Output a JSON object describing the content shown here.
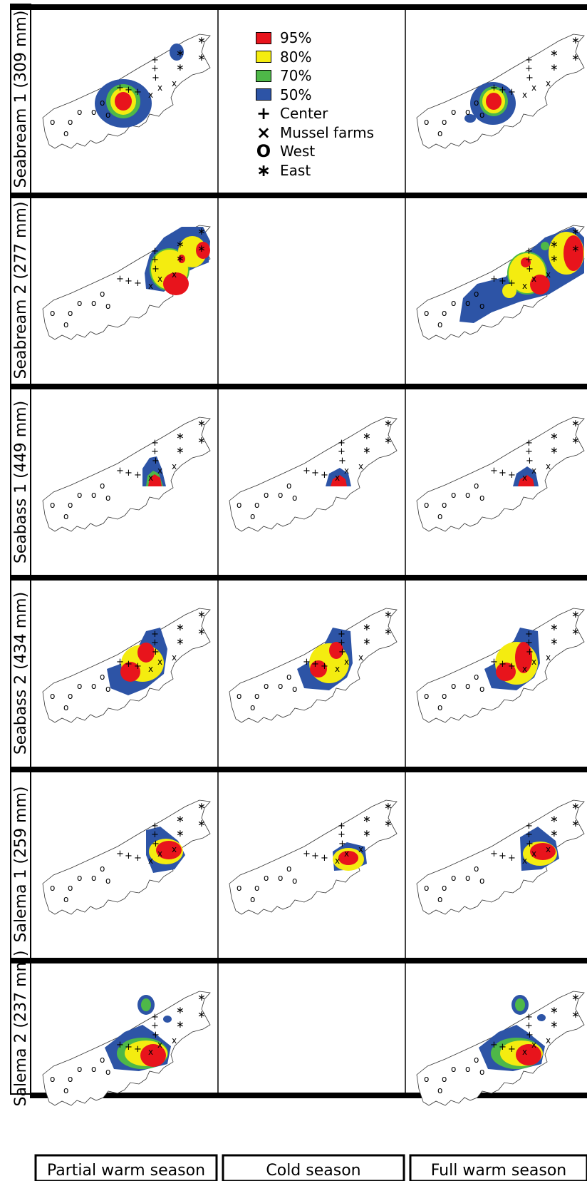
{
  "colors": {
    "p95": "#e8141c",
    "p80": "#f4ec10",
    "p70": "#4eb848",
    "p50": "#2d54a6"
  },
  "rows": [
    {
      "label": "Seabream 1 (309 mm)"
    },
    {
      "label": "Seabream 2 (277 mm)"
    },
    {
      "label": "Seabass 1 (449 mm)"
    },
    {
      "label": "Seabass 2 (434 mm)"
    },
    {
      "label": "Salema 1 (259 mm)"
    },
    {
      "label": "Salema 2 (237 mm)"
    }
  ],
  "columns": [
    {
      "label": "Partial warm season"
    },
    {
      "label": "Cold season"
    },
    {
      "label": "Full warm season"
    }
  ],
  "legend": {
    "items": [
      {
        "label": "95%",
        "kind": "swatch",
        "color": "#e8141c"
      },
      {
        "label": "80%",
        "kind": "swatch",
        "color": "#f4ec10"
      },
      {
        "label": "70%",
        "kind": "swatch",
        "color": "#4eb848"
      },
      {
        "label": "50%",
        "kind": "swatch",
        "color": "#2d54a6"
      },
      {
        "label": "Center",
        "kind": "glyph",
        "glyph": "+"
      },
      {
        "label": "Mussel farms",
        "kind": "glyph",
        "glyph": "×"
      },
      {
        "label": "West",
        "kind": "glyph",
        "glyph": "O"
      },
      {
        "label": "East",
        "kind": "glyph",
        "glyph": "∗"
      }
    ]
  }
}
